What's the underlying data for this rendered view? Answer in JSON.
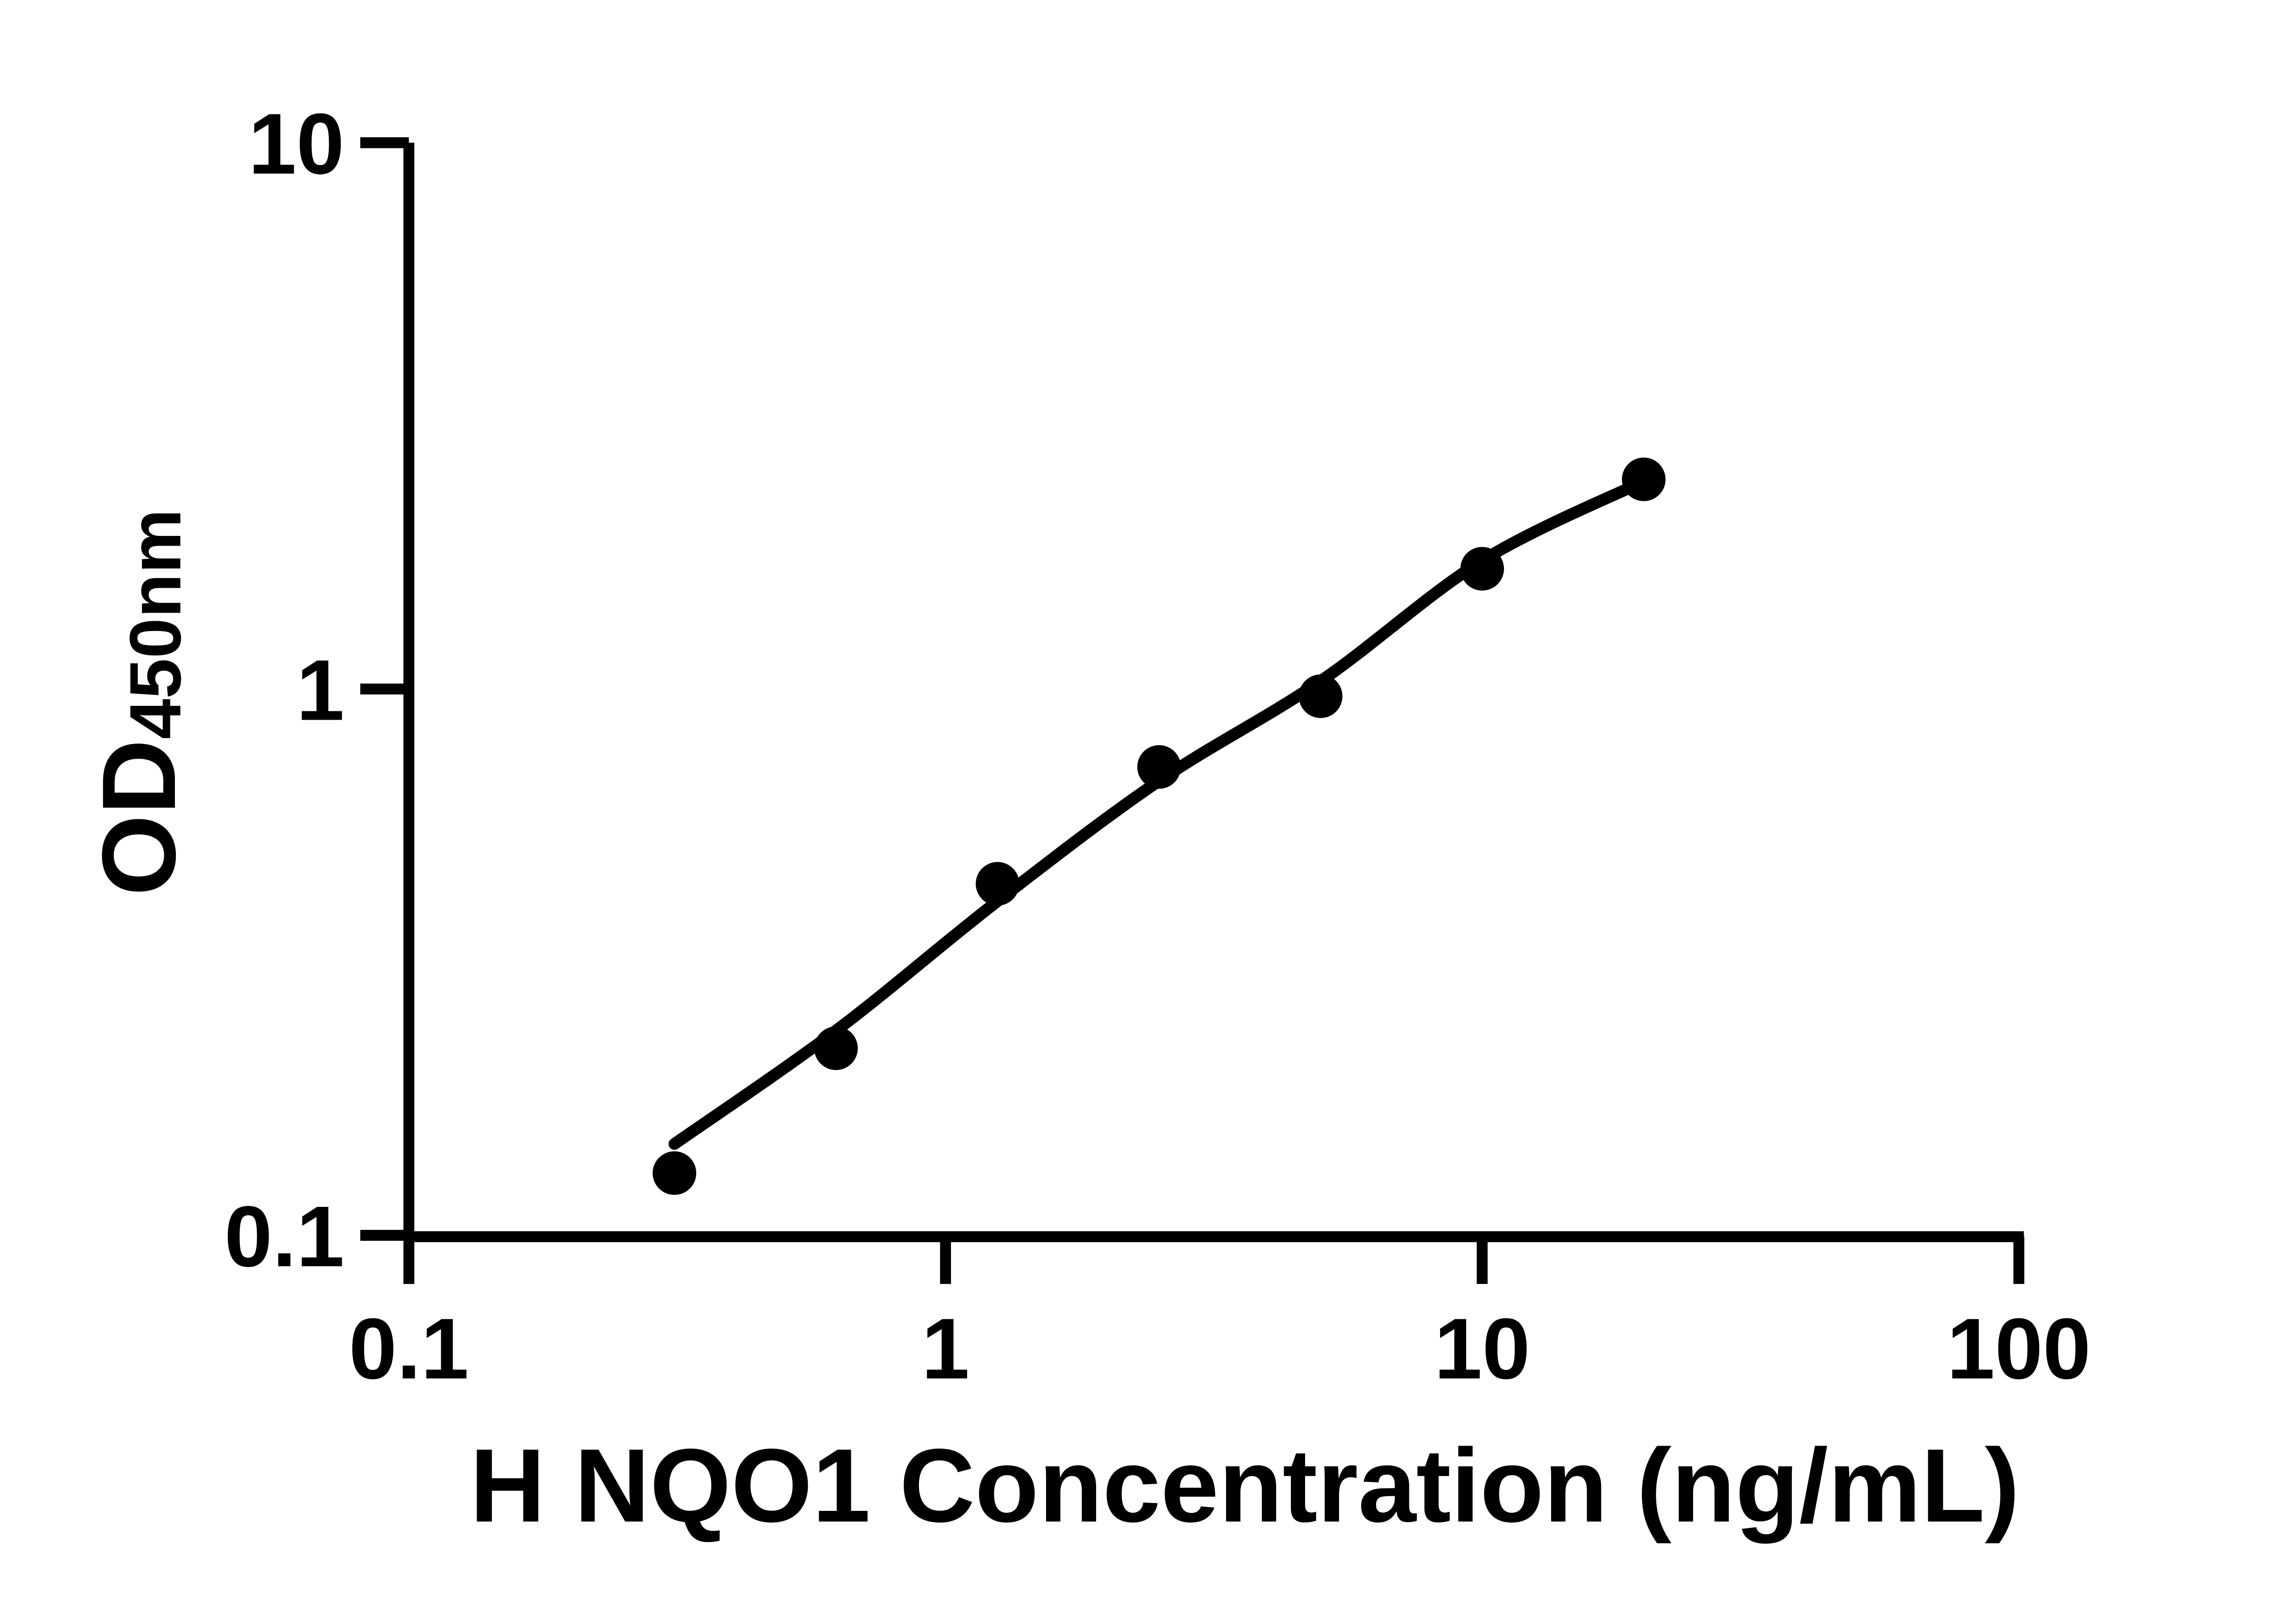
{
  "figure": {
    "background_color": "#ffffff",
    "ink_color": "#000000"
  },
  "chart_data": {
    "type": "scatter",
    "title": "",
    "xlabel": "H NQO1 Concentration (ng/mL)",
    "ylabel_main": "OD",
    "ylabel_sub": "450nm",
    "x_scale": "log",
    "y_scale": "log",
    "xlim": [
      0.1,
      100
    ],
    "ylim": [
      0.1,
      10
    ],
    "x_ticks": [
      0.1,
      1,
      10,
      100
    ],
    "x_tick_labels": [
      "0.1",
      "1",
      "10",
      "100"
    ],
    "y_ticks": [
      0.1,
      1,
      10
    ],
    "y_tick_labels": [
      "0.1",
      "1",
      "10"
    ],
    "grid": false,
    "legend": false,
    "marker_color": "#000000",
    "line_color": "#000000",
    "series": [
      {
        "name": "standard-curve-points",
        "marker": "filled-circle",
        "x": [
          0.3125,
          0.625,
          1.25,
          2.5,
          5,
          10,
          20
        ],
        "y": [
          0.13,
          0.22,
          0.44,
          0.72,
          0.97,
          1.66,
          2.42
        ]
      }
    ],
    "fit_curve": {
      "name": "fitted-standard-curve",
      "x": [
        0.3125,
        0.625,
        1.25,
        2.5,
        5,
        10,
        20
      ],
      "y": [
        0.147,
        0.237,
        0.409,
        0.679,
        1.034,
        1.718,
        2.4
      ]
    }
  }
}
